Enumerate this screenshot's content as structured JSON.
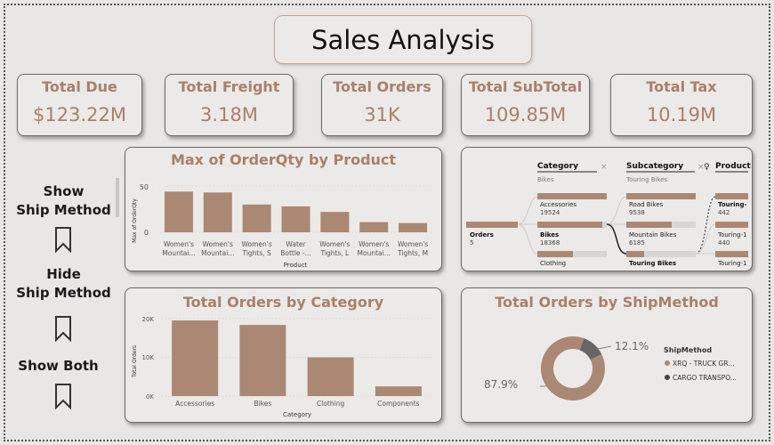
{
  "report_title": "Sales Analysis",
  "kpis": [
    {
      "label": "Total Due",
      "value": "$123.22M"
    },
    {
      "label": "Total Freight",
      "value": "3.18M"
    },
    {
      "label": "Total Orders",
      "value": "31K"
    },
    {
      "label": "Total SubTotal",
      "value": "109.85M"
    },
    {
      "label": "Total Tax",
      "value": "10.19M"
    }
  ],
  "slicer": {
    "show": [
      "Show",
      "Ship Method"
    ],
    "hide": [
      "Hide",
      "Ship Method"
    ],
    "both": "Show Both"
  },
  "colors": {
    "bar": "#ab8873",
    "accent_text": "#a98068",
    "donut_dark": "#666666"
  },
  "charts": {
    "orderqty": {
      "title": "Max of OrderQty by Product",
      "ylabel": "Max of OrderQty",
      "xlabel": "Product",
      "yticks": [
        "50",
        "0"
      ],
      "categories": [
        [
          "Women's",
          "Mountai..."
        ],
        [
          "Women's",
          "Mountai..."
        ],
        [
          "Women's",
          "Tights, S"
        ],
        [
          "Water",
          "Bottle -..."
        ],
        [
          "Women's",
          "Tights, L"
        ],
        [
          "Women's",
          "Mountai..."
        ],
        [
          "Women's",
          "Tights, M"
        ]
      ]
    },
    "category": {
      "title": "Total Orders by Category",
      "ylabel": "Total Orders",
      "xlabel": "Category",
      "yticks": [
        "20K",
        "10K",
        "0K"
      ]
    },
    "shipmethod": {
      "title": "Total Orders by ShipMethod",
      "legend_title": "ShipMethod",
      "labels": [
        "87.9%",
        "12.1%"
      ],
      "legend": [
        "XRQ - TRUCK GR...",
        "CARGO TRANSPO..."
      ]
    }
  },
  "chart_data": [
    {
      "type": "bar",
      "title": "Max of OrderQty by Product",
      "ylabel": "Max of OrderQty",
      "xlabel": "Product",
      "ylim": [
        0,
        55
      ],
      "categories": [
        "Women's Mountai...",
        "Women's Mountai...",
        "Women's Tights, S",
        "Water Bottle -...",
        "Women's Tights, L",
        "Women's Mountai...",
        "Women's Tights, M"
      ],
      "values": [
        44,
        43,
        30,
        28,
        22,
        11,
        10
      ]
    },
    {
      "type": "bar",
      "title": "Total Orders by Category",
      "ylabel": "Total Orders",
      "xlabel": "Category",
      "ylim": [
        0,
        22000
      ],
      "categories": [
        "Accessories",
        "Bikes",
        "Clothing",
        "Components"
      ],
      "values": [
        19524,
        18368,
        10000,
        2500
      ]
    },
    {
      "type": "pie",
      "title": "Total Orders by ShipMethod",
      "categories": [
        "XRQ - TRUCK GR...",
        "CARGO TRANSPO..."
      ],
      "values": [
        87.9,
        12.1
      ]
    }
  ],
  "decomp": {
    "root": {
      "label": "Orders",
      "value": "5"
    },
    "category": {
      "header": "Category",
      "sub": "Bikes",
      "items": [
        {
          "label": "Accessories",
          "value": "19524",
          "fill": 1.0
        },
        {
          "label": "Bikes",
          "value": "18368",
          "fill": 0.94
        },
        {
          "label": "Clothing",
          "value": "",
          "fill": 0.5
        }
      ]
    },
    "subcategory": {
      "header": "Subcategory",
      "sub": "Touring Bikes",
      "items": [
        {
          "label": "Road Bikes",
          "value": "9538",
          "fill": 1.0
        },
        {
          "label": "Mountain Bikes",
          "value": "6185",
          "fill": 0.65
        },
        {
          "label": "Touring Bikes",
          "value": "",
          "fill": 0.25
        }
      ]
    },
    "product": {
      "header": "Product",
      "items": [
        {
          "label": "Touring-",
          "value": "442"
        },
        {
          "label": "Touring-1",
          "value": "440"
        },
        {
          "label": "Touring-1",
          "value": ""
        }
      ]
    }
  }
}
